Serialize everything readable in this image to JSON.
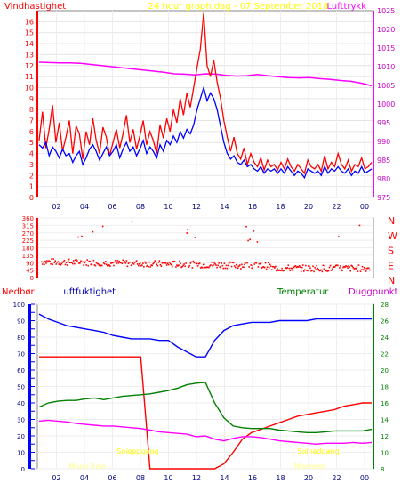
{
  "chart_data": [
    {
      "type": "line",
      "title": "24 hour graph dag - 07 September 2018",
      "ylabel_left": "Vindhastighet",
      "ylabel_right": "Lufttrykk",
      "x_ticks": [
        "02",
        "04",
        "06",
        "08",
        "10",
        "12",
        "14",
        "16",
        "18",
        "20",
        "22",
        "00"
      ],
      "y_left_ticks": [
        "0",
        "1",
        "2",
        "3",
        "4",
        "5",
        "6",
        "7",
        "8",
        "9",
        "10",
        "11",
        "12",
        "13",
        "14",
        "15",
        "16"
      ],
      "y_right_ticks": [
        "975",
        "980",
        "985",
        "990",
        "995",
        "1000",
        "1005",
        "1010",
        "1015",
        "1020",
        "1025"
      ],
      "ylim_left": [
        0,
        17
      ],
      "ylim_right": [
        975,
        1025
      ],
      "series": [
        {
          "color": "#ff0000",
          "values": [
            5.2,
            7.8,
            4.5,
            6.2,
            8.4,
            5.0,
            6.8,
            4.2,
            5.5,
            7.0,
            4.0,
            6.5,
            5.8,
            3.5,
            6.0,
            4.8,
            7.2,
            5.2,
            4.0,
            6.4,
            5.5,
            3.8,
            5.0,
            6.2,
            4.5,
            5.8,
            7.5,
            5.0,
            6.2,
            4.4,
            5.6,
            7.0,
            4.8,
            6.0,
            5.2,
            4.0,
            6.6,
            5.4,
            7.2,
            6.0,
            8.0,
            6.8,
            9.0,
            7.5,
            9.5,
            8.2,
            10.0,
            11.8,
            13.5,
            16.8,
            12.0,
            11.0,
            12.5,
            10.5,
            9.0,
            7.0,
            5.5,
            4.2,
            5.5,
            4.0,
            3.5,
            4.5,
            3.0,
            4.0,
            3.2,
            2.8,
            3.6,
            2.5,
            3.4,
            2.8,
            3.0,
            2.5,
            3.2,
            2.6,
            3.5,
            2.8,
            2.4,
            3.0,
            2.6,
            2.2,
            3.4,
            2.8,
            2.6,
            3.0,
            2.4,
            3.8,
            2.6,
            3.2,
            2.8,
            4.0,
            3.0,
            2.6,
            3.4,
            2.4,
            3.0,
            2.8,
            3.6,
            2.6,
            2.8,
            3.2
          ]
        },
        {
          "color": "#0000ff",
          "values": [
            4.8,
            4.5,
            5.0,
            3.8,
            4.6,
            4.2,
            3.6,
            4.4,
            3.8,
            4.0,
            3.2,
            3.8,
            4.2,
            3.0,
            3.6,
            4.4,
            4.8,
            4.2,
            3.4,
            4.0,
            4.6,
            3.8,
            4.2,
            4.8,
            3.6,
            4.4,
            5.0,
            4.2,
            4.6,
            3.8,
            4.4,
            5.2,
            4.0,
            4.6,
            4.2,
            3.6,
            4.8,
            4.2,
            5.2,
            4.8,
            5.6,
            5.0,
            6.0,
            5.4,
            6.2,
            5.8,
            6.6,
            8.0,
            9.0,
            10.0,
            8.8,
            9.5,
            9.0,
            8.0,
            6.5,
            5.0,
            4.0,
            3.5,
            3.8,
            3.2,
            3.0,
            3.4,
            2.8,
            3.0,
            2.6,
            2.4,
            2.8,
            2.2,
            2.6,
            2.4,
            2.6,
            2.2,
            2.6,
            2.2,
            2.8,
            2.4,
            2.0,
            2.4,
            2.2,
            1.8,
            2.6,
            2.4,
            2.2,
            2.4,
            2.0,
            2.8,
            2.2,
            2.6,
            2.4,
            2.8,
            2.4,
            2.2,
            2.6,
            2.0,
            2.4,
            2.2,
            2.8,
            2.2,
            2.4,
            2.6
          ]
        },
        {
          "color": "#ff00ff",
          "axis": "right",
          "values": [
            1011.2,
            1011.1,
            1011.0,
            1011.0,
            1010.9,
            1010.6,
            1010.3,
            1010.0,
            1009.7,
            1009.4,
            1009.1,
            1008.8,
            1008.5,
            1008.1,
            1008.0,
            1007.8,
            1008.1,
            1008.0,
            1007.7,
            1007.5,
            1007.6,
            1007.9,
            1007.6,
            1007.3,
            1007.1,
            1007.0,
            1007.1,
            1006.8,
            1006.6,
            1006.3,
            1006.1,
            1005.6,
            1004.9
          ]
        }
      ]
    },
    {
      "type": "scatter",
      "ylabel_right_ticks": [
        "N",
        "W",
        "S",
        "E",
        "N"
      ],
      "y_ticks": [
        "0",
        "45",
        "90",
        "135",
        "180",
        "225",
        "270",
        "315",
        "360"
      ],
      "ylim": [
        0,
        360
      ],
      "color": "#ff0000"
    },
    {
      "type": "line",
      "labels": {
        "nedbor": "Nedbør",
        "luftfuktighet": "Luftfuktighet",
        "temperatur": "Temperatur",
        "duggpunkt": "Duggpunkt"
      },
      "x_ticks": [
        "02",
        "04",
        "06",
        "08",
        "10",
        "12",
        "14",
        "16",
        "18",
        "20",
        "22",
        "00"
      ],
      "y_left_ticks": [
        "0",
        "10",
        "20",
        "30",
        "40",
        "50",
        "60",
        "70",
        "80",
        "90",
        "100"
      ],
      "y_right_ticks": [
        "8",
        "10",
        "12",
        "14",
        "16",
        "18",
        "20",
        "22",
        "24",
        "26",
        "28"
      ],
      "ylim_left": [
        0,
        100
      ],
      "ylim_right": [
        8,
        28
      ],
      "annotations": [
        {
          "text": "Soloppgang",
          "x": "06",
          "color": "#ffff00"
        },
        {
          "text": "Solnedgang",
          "x": "20",
          "color": "#ffff00"
        },
        {
          "text": "Moon Rise",
          "x": "03",
          "color": "#ffff80"
        },
        {
          "text": "Moonset",
          "x": "20",
          "color": "#ffff80"
        }
      ],
      "series": [
        {
          "name": "Luftfuktighet",
          "color": "#0000ff",
          "values": [
            94,
            91,
            89,
            87,
            86,
            85,
            84,
            83,
            81,
            80,
            79,
            79,
            79,
            78,
            78,
            74,
            71,
            68,
            68,
            78,
            84,
            87,
            88,
            89,
            89,
            89,
            90,
            90,
            90,
            90,
            91,
            91,
            91,
            91,
            91,
            91,
            91
          ]
        },
        {
          "name": "Temperatur",
          "color": "#008000",
          "axis": "right",
          "values": [
            15.5,
            16.0,
            16.2,
            16.3,
            16.3,
            16.5,
            16.6,
            16.4,
            16.6,
            16.8,
            16.9,
            17.0,
            17.1,
            17.3,
            17.5,
            17.8,
            18.2,
            18.4,
            18.5,
            16.0,
            14.2,
            13.2,
            13.0,
            12.9,
            12.9,
            12.9,
            12.7,
            12.6,
            12.5,
            12.4,
            12.4,
            12.5,
            12.6,
            12.6,
            12.6,
            12.6,
            12.8
          ]
        },
        {
          "name": "Duggpunkt",
          "color": "#ff00ff",
          "axis": "right",
          "values": [
            13.8,
            13.9,
            13.8,
            13.7,
            13.5,
            13.4,
            13.3,
            13.2,
            13.2,
            13.1,
            13.0,
            12.9,
            12.7,
            12.5,
            12.4,
            12.3,
            12.2,
            11.9,
            12.0,
            11.6,
            11.4,
            11.7,
            11.9,
            11.9,
            11.8,
            11.6,
            11.4,
            11.3,
            11.2,
            11.1,
            11.0,
            11.1,
            11.1,
            11.1,
            11.2,
            11.1,
            11.2
          ]
        },
        {
          "name": "Nedbør",
          "color": "#ff0000",
          "values": [
            68,
            68,
            68,
            68,
            68,
            68,
            68,
            68,
            68,
            68,
            68,
            68,
            0,
            0,
            0,
            0,
            0,
            0,
            0,
            0,
            3,
            10,
            18,
            22,
            24,
            26,
            28,
            30,
            32,
            33,
            34,
            35,
            36,
            38,
            39,
            40,
            40
          ]
        }
      ]
    }
  ]
}
